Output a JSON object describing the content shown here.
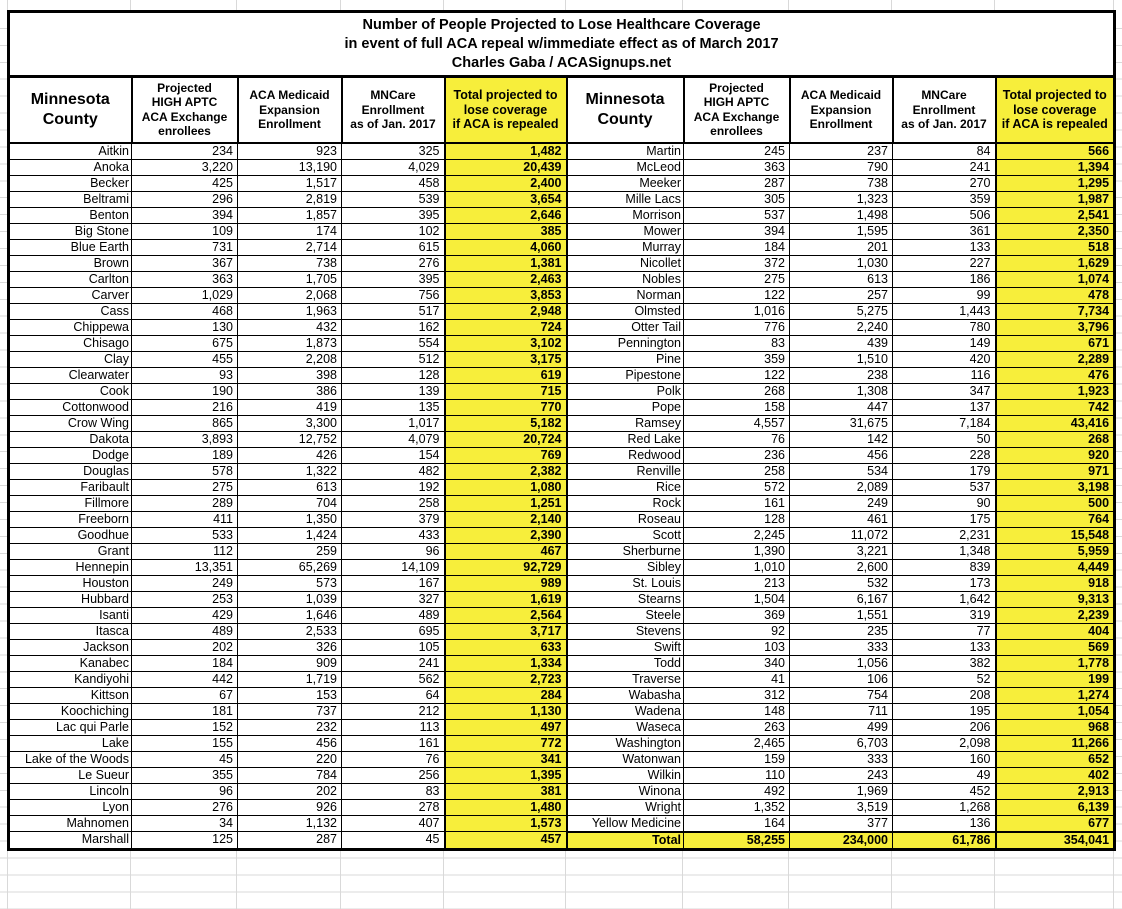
{
  "title": "Number of People Projected to Lose Healthcare Coverage\nin event of full ACA repeal w/immediate effect as of March 2017\nCharles Gaba / ACASignups.net",
  "headers": {
    "county": "Minnesota\nCounty",
    "aptc": "Projected\nHIGH APTC\nACA Exchange\nenrollees",
    "medicaid": "ACA Medicaid\nExpansion\nEnrollment",
    "mncare": "MNCare\nEnrollment\nas of Jan. 2017",
    "total": "Total projected to\nlose coverage\nif ACA is repealed"
  },
  "colors": {
    "highlight": "#F7EE3B",
    "gridline": "#D9D9D9"
  },
  "left_rows": [
    [
      "Aitkin",
      "234",
      "923",
      "325",
      "1,482"
    ],
    [
      "Anoka",
      "3,220",
      "13,190",
      "4,029",
      "20,439"
    ],
    [
      "Becker",
      "425",
      "1,517",
      "458",
      "2,400"
    ],
    [
      "Beltrami",
      "296",
      "2,819",
      "539",
      "3,654"
    ],
    [
      "Benton",
      "394",
      "1,857",
      "395",
      "2,646"
    ],
    [
      "Big Stone",
      "109",
      "174",
      "102",
      "385"
    ],
    [
      "Blue Earth",
      "731",
      "2,714",
      "615",
      "4,060"
    ],
    [
      "Brown",
      "367",
      "738",
      "276",
      "1,381"
    ],
    [
      "Carlton",
      "363",
      "1,705",
      "395",
      "2,463"
    ],
    [
      "Carver",
      "1,029",
      "2,068",
      "756",
      "3,853"
    ],
    [
      "Cass",
      "468",
      "1,963",
      "517",
      "2,948"
    ],
    [
      "Chippewa",
      "130",
      "432",
      "162",
      "724"
    ],
    [
      "Chisago",
      "675",
      "1,873",
      "554",
      "3,102"
    ],
    [
      "Clay",
      "455",
      "2,208",
      "512",
      "3,175"
    ],
    [
      "Clearwater",
      "93",
      "398",
      "128",
      "619"
    ],
    [
      "Cook",
      "190",
      "386",
      "139",
      "715"
    ],
    [
      "Cottonwood",
      "216",
      "419",
      "135",
      "770"
    ],
    [
      "Crow Wing",
      "865",
      "3,300",
      "1,017",
      "5,182"
    ],
    [
      "Dakota",
      "3,893",
      "12,752",
      "4,079",
      "20,724"
    ],
    [
      "Dodge",
      "189",
      "426",
      "154",
      "769"
    ],
    [
      "Douglas",
      "578",
      "1,322",
      "482",
      "2,382"
    ],
    [
      "Faribault",
      "275",
      "613",
      "192",
      "1,080"
    ],
    [
      "Fillmore",
      "289",
      "704",
      "258",
      "1,251"
    ],
    [
      "Freeborn",
      "411",
      "1,350",
      "379",
      "2,140"
    ],
    [
      "Goodhue",
      "533",
      "1,424",
      "433",
      "2,390"
    ],
    [
      "Grant",
      "112",
      "259",
      "96",
      "467"
    ],
    [
      "Hennepin",
      "13,351",
      "65,269",
      "14,109",
      "92,729"
    ],
    [
      "Houston",
      "249",
      "573",
      "167",
      "989"
    ],
    [
      "Hubbard",
      "253",
      "1,039",
      "327",
      "1,619"
    ],
    [
      "Isanti",
      "429",
      "1,646",
      "489",
      "2,564"
    ],
    [
      "Itasca",
      "489",
      "2,533",
      "695",
      "3,717"
    ],
    [
      "Jackson",
      "202",
      "326",
      "105",
      "633"
    ],
    [
      "Kanabec",
      "184",
      "909",
      "241",
      "1,334"
    ],
    [
      "Kandiyohi",
      "442",
      "1,719",
      "562",
      "2,723"
    ],
    [
      "Kittson",
      "67",
      "153",
      "64",
      "284"
    ],
    [
      "Koochiching",
      "181",
      "737",
      "212",
      "1,130"
    ],
    [
      "Lac qui Parle",
      "152",
      "232",
      "113",
      "497"
    ],
    [
      "Lake",
      "155",
      "456",
      "161",
      "772"
    ],
    [
      "Lake of the Woods",
      "45",
      "220",
      "76",
      "341"
    ],
    [
      "Le Sueur",
      "355",
      "784",
      "256",
      "1,395"
    ],
    [
      "Lincoln",
      "96",
      "202",
      "83",
      "381"
    ],
    [
      "Lyon",
      "276",
      "926",
      "278",
      "1,480"
    ],
    [
      "Mahnomen",
      "34",
      "1,132",
      "407",
      "1,573"
    ],
    [
      "Marshall",
      "125",
      "287",
      "45",
      "457"
    ]
  ],
  "right_rows": [
    [
      "Martin",
      "245",
      "237",
      "84",
      "566"
    ],
    [
      "McLeod",
      "363",
      "790",
      "241",
      "1,394"
    ],
    [
      "Meeker",
      "287",
      "738",
      "270",
      "1,295"
    ],
    [
      "Mille Lacs",
      "305",
      "1,323",
      "359",
      "1,987"
    ],
    [
      "Morrison",
      "537",
      "1,498",
      "506",
      "2,541"
    ],
    [
      "Mower",
      "394",
      "1,595",
      "361",
      "2,350"
    ],
    [
      "Murray",
      "184",
      "201",
      "133",
      "518"
    ],
    [
      "Nicollet",
      "372",
      "1,030",
      "227",
      "1,629"
    ],
    [
      "Nobles",
      "275",
      "613",
      "186",
      "1,074"
    ],
    [
      "Norman",
      "122",
      "257",
      "99",
      "478"
    ],
    [
      "Olmsted",
      "1,016",
      "5,275",
      "1,443",
      "7,734"
    ],
    [
      "Otter Tail",
      "776",
      "2,240",
      "780",
      "3,796"
    ],
    [
      "Pennington",
      "83",
      "439",
      "149",
      "671"
    ],
    [
      "Pine",
      "359",
      "1,510",
      "420",
      "2,289"
    ],
    [
      "Pipestone",
      "122",
      "238",
      "116",
      "476"
    ],
    [
      "Polk",
      "268",
      "1,308",
      "347",
      "1,923"
    ],
    [
      "Pope",
      "158",
      "447",
      "137",
      "742"
    ],
    [
      "Ramsey",
      "4,557",
      "31,675",
      "7,184",
      "43,416"
    ],
    [
      "Red Lake",
      "76",
      "142",
      "50",
      "268"
    ],
    [
      "Redwood",
      "236",
      "456",
      "228",
      "920"
    ],
    [
      "Renville",
      "258",
      "534",
      "179",
      "971"
    ],
    [
      "Rice",
      "572",
      "2,089",
      "537",
      "3,198"
    ],
    [
      "Rock",
      "161",
      "249",
      "90",
      "500"
    ],
    [
      "Roseau",
      "128",
      "461",
      "175",
      "764"
    ],
    [
      "Scott",
      "2,245",
      "11,072",
      "2,231",
      "15,548"
    ],
    [
      "Sherburne",
      "1,390",
      "3,221",
      "1,348",
      "5,959"
    ],
    [
      "Sibley",
      "1,010",
      "2,600",
      "839",
      "4,449"
    ],
    [
      "St. Louis",
      "213",
      "532",
      "173",
      "918"
    ],
    [
      "Stearns",
      "1,504",
      "6,167",
      "1,642",
      "9,313"
    ],
    [
      "Steele",
      "369",
      "1,551",
      "319",
      "2,239"
    ],
    [
      "Stevens",
      "92",
      "235",
      "77",
      "404"
    ],
    [
      "Swift",
      "103",
      "333",
      "133",
      "569"
    ],
    [
      "Todd",
      "340",
      "1,056",
      "382",
      "1,778"
    ],
    [
      "Traverse",
      "41",
      "106",
      "52",
      "199"
    ],
    [
      "Wabasha",
      "312",
      "754",
      "208",
      "1,274"
    ],
    [
      "Wadena",
      "148",
      "711",
      "195",
      "1,054"
    ],
    [
      "Waseca",
      "263",
      "499",
      "206",
      "968"
    ],
    [
      "Washington",
      "2,465",
      "6,703",
      "2,098",
      "11,266"
    ],
    [
      "Watonwan",
      "159",
      "333",
      "160",
      "652"
    ],
    [
      "Wilkin",
      "110",
      "243",
      "49",
      "402"
    ],
    [
      "Winona",
      "492",
      "1,969",
      "452",
      "2,913"
    ],
    [
      "Wright",
      "1,352",
      "3,519",
      "1,268",
      "6,139"
    ],
    [
      "Yellow Medicine",
      "164",
      "377",
      "136",
      "677"
    ],
    [
      "Total",
      "58,255",
      "234,000",
      "61,786",
      "354,041"
    ]
  ]
}
